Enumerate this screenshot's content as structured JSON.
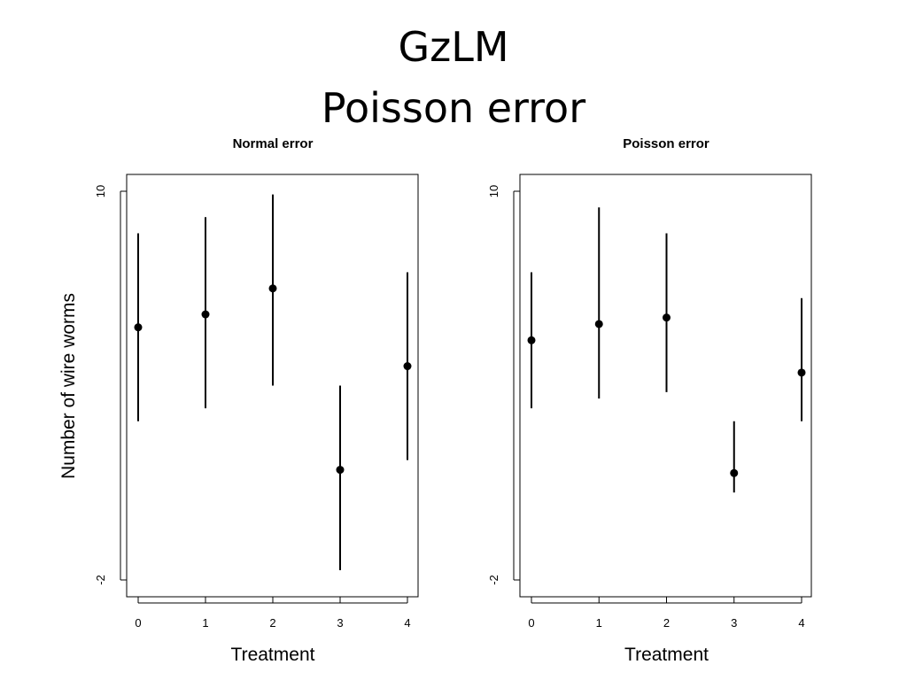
{
  "slide": {
    "title_line1": "GzLM",
    "title_line2": "Poisson error"
  },
  "chart_data": [
    {
      "type": "scatter",
      "title": "Normal error",
      "xlabel": "Treatment",
      "ylabel": "Number of wire worms",
      "x_ticks": [
        "0",
        "1",
        "2",
        "3",
        "4"
      ],
      "y_ticks": [
        "10",
        "-2"
      ],
      "ylim": [
        -2,
        10
      ],
      "series": [
        {
          "x": [
            0,
            1,
            2,
            3,
            4
          ],
          "y": [
            5.8,
            6.2,
            7.0,
            1.4,
            4.6
          ],
          "lower": [
            2.9,
            3.3,
            4.0,
            -1.7,
            1.7
          ],
          "upper": [
            8.7,
            9.2,
            9.9,
            4.0,
            7.5
          ]
        }
      ],
      "grid": false,
      "legend": "none"
    },
    {
      "type": "scatter",
      "title": "Poisson error",
      "xlabel": "Treatment",
      "ylabel": "",
      "x_ticks": [
        "0",
        "1",
        "2",
        "3",
        "4"
      ],
      "y_ticks": [
        "10",
        "-2"
      ],
      "ylim": [
        -2,
        10
      ],
      "series": [
        {
          "x": [
            0,
            1,
            2,
            3,
            4
          ],
          "y": [
            5.4,
            5.9,
            6.1,
            1.3,
            4.4
          ],
          "lower": [
            3.3,
            3.6,
            3.8,
            0.7,
            2.9
          ],
          "upper": [
            7.5,
            9.5,
            8.7,
            2.9,
            6.7
          ]
        }
      ],
      "grid": false,
      "legend": "none"
    }
  ]
}
